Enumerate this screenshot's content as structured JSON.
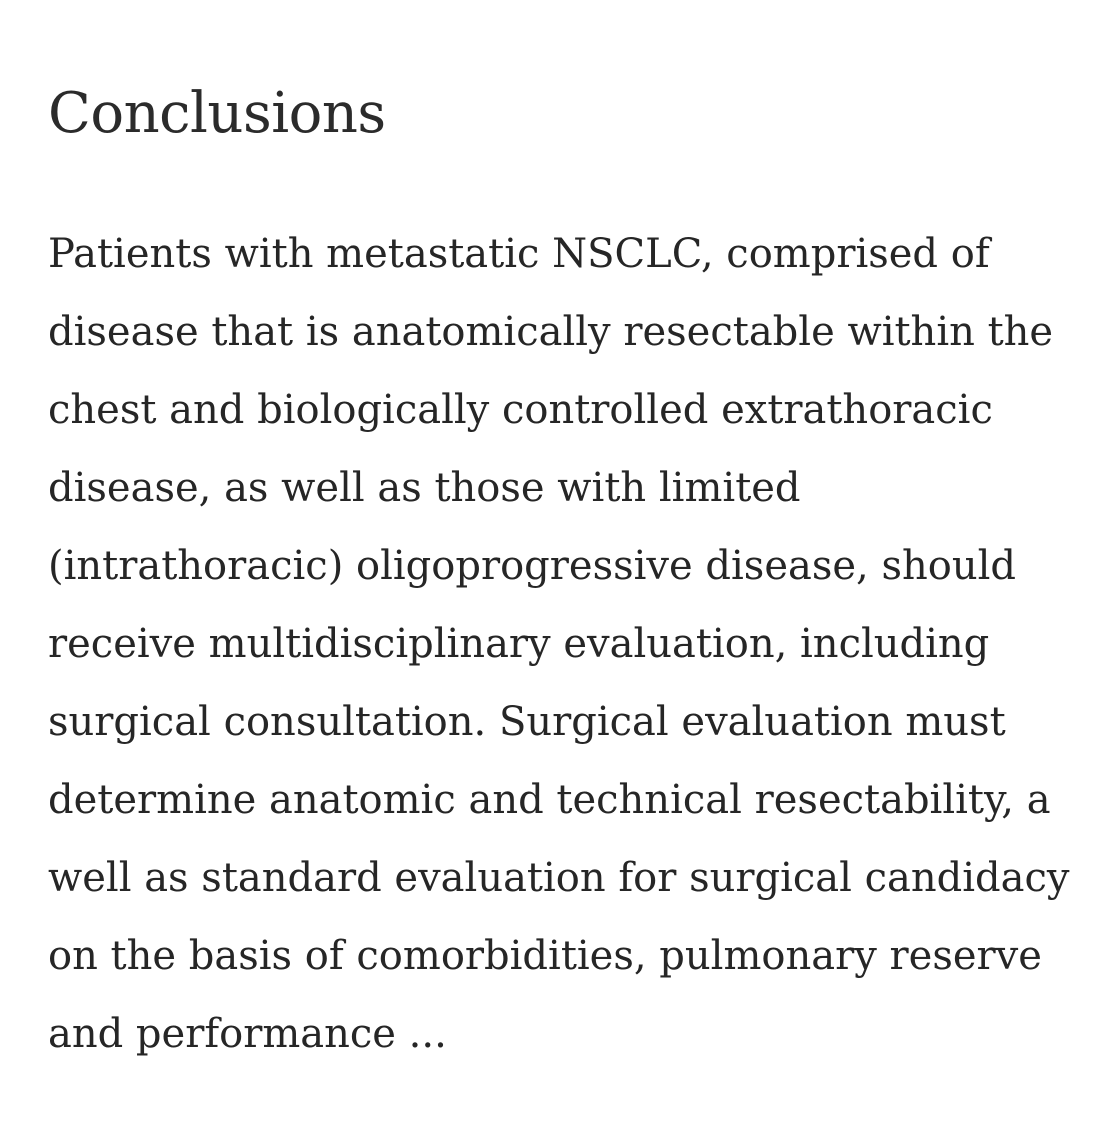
{
  "section": {
    "heading": "Conclusions",
    "lines": [
      "Patients with metastatic NSCLC, comprised of",
      "disease that is anatomically resectable within the",
      "chest and biologically controlled extrathoracic",
      "disease, as well as those with limited",
      "(intrathoracic) oligoprogressive disease, should",
      "receive multidisciplinary evaluation, including",
      "surgical consultation. Surgical evaluation must",
      "determine anatomic and technical resectability, a",
      "well as standard evaluation for surgical candidacy",
      "on the basis of comorbidities, pulmonary reserve",
      "and performance ..."
    ]
  }
}
